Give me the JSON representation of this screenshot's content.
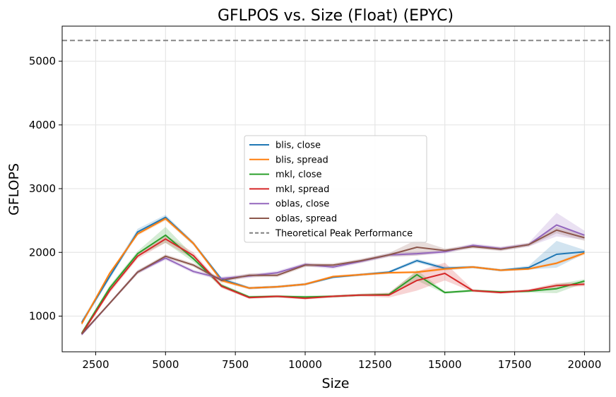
{
  "chart_data": {
    "type": "line",
    "title": "GFLPOS vs. Size (Float) (EPYC)",
    "xlabel": "Size",
    "ylabel": "GFLOPS",
    "xlim": [
      1300,
      20900
    ],
    "ylim": [
      440,
      5550
    ],
    "xticks": [
      2500,
      5000,
      7500,
      10000,
      12500,
      15000,
      17500,
      20000
    ],
    "yticks": [
      1000,
      2000,
      3000,
      4000,
      5000
    ],
    "grid": true,
    "legend_position": "center",
    "x": [
      2000,
      3000,
      4000,
      5000,
      6000,
      7000,
      8000,
      9000,
      10000,
      11000,
      12000,
      13000,
      14000,
      15000,
      16000,
      17000,
      18000,
      19000,
      20000
    ],
    "series": [
      {
        "name": "blis, close",
        "color": "#1f77b4",
        "values": [
          900,
          1620,
          2320,
          2550,
          2140,
          1580,
          1440,
          1460,
          1500,
          1610,
          1650,
          1690,
          1870,
          1750,
          1770,
          1720,
          1760,
          1970,
          2010
        ],
        "band": [
          [
            860,
            940
          ],
          [
            1580,
            1660
          ],
          [
            2280,
            2370
          ],
          [
            2510,
            2590
          ],
          [
            2110,
            2170
          ],
          [
            1550,
            1610
          ],
          [
            1420,
            1460
          ],
          [
            1440,
            1480
          ],
          [
            1480,
            1520
          ],
          [
            1590,
            1630
          ],
          [
            1630,
            1670
          ],
          [
            1670,
            1710
          ],
          [
            1840,
            1900
          ],
          [
            1720,
            1780
          ],
          [
            1750,
            1790
          ],
          [
            1700,
            1740
          ],
          [
            1730,
            1790
          ],
          [
            1760,
            2180
          ],
          [
            1980,
            2040
          ]
        ]
      },
      {
        "name": "blis, spread",
        "color": "#ff7f0e",
        "values": [
          880,
          1670,
          2290,
          2530,
          2140,
          1560,
          1440,
          1460,
          1500,
          1620,
          1650,
          1680,
          1690,
          1740,
          1770,
          1720,
          1740,
          1830,
          1990
        ],
        "band": [
          [
            850,
            910
          ],
          [
            1640,
            1700
          ],
          [
            2260,
            2320
          ],
          [
            2500,
            2560
          ],
          [
            2110,
            2170
          ],
          [
            1530,
            1590
          ],
          [
            1420,
            1460
          ],
          [
            1440,
            1480
          ],
          [
            1480,
            1520
          ],
          [
            1600,
            1640
          ],
          [
            1630,
            1670
          ],
          [
            1660,
            1700
          ],
          [
            1670,
            1710
          ],
          [
            1720,
            1760
          ],
          [
            1750,
            1790
          ],
          [
            1700,
            1740
          ],
          [
            1720,
            1760
          ],
          [
            1810,
            1850
          ],
          [
            1960,
            2020
          ]
        ]
      },
      {
        "name": "mkl, close",
        "color": "#2ca02c",
        "values": [
          730,
          1440,
          1980,
          2270,
          1900,
          1480,
          1300,
          1310,
          1300,
          1310,
          1330,
          1340,
          1650,
          1370,
          1400,
          1380,
          1390,
          1430,
          1550
        ],
        "band": [
          [
            700,
            760
          ],
          [
            1400,
            1480
          ],
          [
            1940,
            2020
          ],
          [
            2150,
            2400
          ],
          [
            1850,
            1950
          ],
          [
            1450,
            1510
          ],
          [
            1280,
            1320
          ],
          [
            1290,
            1330
          ],
          [
            1280,
            1320
          ],
          [
            1290,
            1330
          ],
          [
            1310,
            1350
          ],
          [
            1320,
            1360
          ],
          [
            1560,
            1720
          ],
          [
            1350,
            1390
          ],
          [
            1380,
            1420
          ],
          [
            1360,
            1400
          ],
          [
            1370,
            1410
          ],
          [
            1360,
            1500
          ],
          [
            1520,
            1580
          ]
        ]
      },
      {
        "name": "mkl, spread",
        "color": "#d62728",
        "values": [
          720,
          1400,
          1940,
          2210,
          1950,
          1470,
          1290,
          1310,
          1280,
          1310,
          1330,
          1330,
          1560,
          1670,
          1400,
          1370,
          1400,
          1480,
          1500
        ],
        "band": [
          [
            690,
            750
          ],
          [
            1360,
            1440
          ],
          [
            1900,
            1980
          ],
          [
            2150,
            2270
          ],
          [
            1900,
            2000
          ],
          [
            1440,
            1500
          ],
          [
            1270,
            1310
          ],
          [
            1290,
            1330
          ],
          [
            1260,
            1300
          ],
          [
            1290,
            1330
          ],
          [
            1310,
            1350
          ],
          [
            1290,
            1370
          ],
          [
            1400,
            1700
          ],
          [
            1560,
            1840
          ],
          [
            1380,
            1420
          ],
          [
            1350,
            1390
          ],
          [
            1380,
            1420
          ],
          [
            1440,
            1520
          ],
          [
            1470,
            1530
          ]
        ]
      },
      {
        "name": "oblas, close",
        "color": "#9467bd",
        "values": [
          710,
          1200,
          1690,
          1910,
          1700,
          1590,
          1630,
          1680,
          1810,
          1770,
          1860,
          1960,
          1980,
          2010,
          2110,
          2060,
          2120,
          2430,
          2270
        ],
        "band": [
          [
            690,
            730
          ],
          [
            1180,
            1220
          ],
          [
            1660,
            1720
          ],
          [
            1880,
            1940
          ],
          [
            1670,
            1730
          ],
          [
            1560,
            1620
          ],
          [
            1600,
            1660
          ],
          [
            1650,
            1710
          ],
          [
            1780,
            1840
          ],
          [
            1740,
            1800
          ],
          [
            1830,
            1890
          ],
          [
            1930,
            1990
          ],
          [
            1950,
            2010
          ],
          [
            1980,
            2040
          ],
          [
            2080,
            2140
          ],
          [
            2030,
            2090
          ],
          [
            2090,
            2150
          ],
          [
            2250,
            2620
          ],
          [
            2200,
            2340
          ]
        ]
      },
      {
        "name": "oblas, spread",
        "color": "#8c564b",
        "values": [
          720,
          1200,
          1690,
          1940,
          1800,
          1560,
          1640,
          1640,
          1800,
          1800,
          1870,
          1960,
          2080,
          2030,
          2090,
          2050,
          2120,
          2350,
          2230
        ],
        "band": [
          [
            700,
            740
          ],
          [
            1180,
            1220
          ],
          [
            1660,
            1720
          ],
          [
            1910,
            1970
          ],
          [
            1770,
            1830
          ],
          [
            1530,
            1590
          ],
          [
            1610,
            1670
          ],
          [
            1610,
            1670
          ],
          [
            1770,
            1830
          ],
          [
            1770,
            1830
          ],
          [
            1840,
            1900
          ],
          [
            1930,
            1990
          ],
          [
            1950,
            2200
          ],
          [
            2000,
            2060
          ],
          [
            2060,
            2120
          ],
          [
            2020,
            2080
          ],
          [
            2090,
            2150
          ],
          [
            2300,
            2400
          ],
          [
            2180,
            2280
          ]
        ]
      }
    ],
    "reference_line": {
      "name": "Theoretical Peak Performance",
      "value": 5325,
      "color": "#808080",
      "style": "dashed"
    }
  }
}
